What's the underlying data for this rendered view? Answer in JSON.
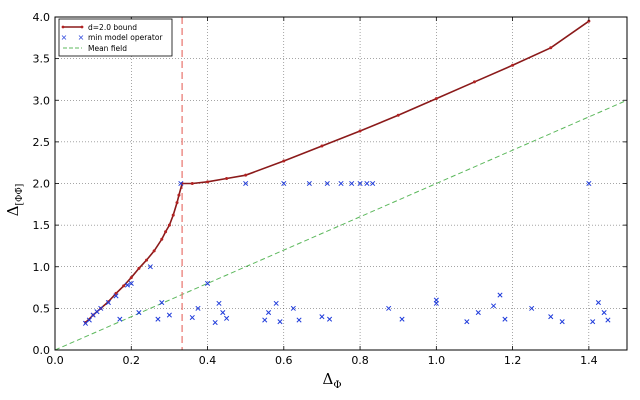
{
  "chart_data": {
    "type": "line",
    "xlim": [
      0.0,
      1.5
    ],
    "ylim": [
      0.0,
      4.0
    ],
    "xticks": [
      "0.0",
      "0.2",
      "0.4",
      "0.6",
      "0.8",
      "1.0",
      "1.2",
      "1.4"
    ],
    "xtick_values": [
      0.0,
      0.2,
      0.4,
      0.6,
      0.8,
      1.0,
      1.2,
      1.4
    ],
    "yticks": [
      "0.0",
      "0.5",
      "1.0",
      "1.5",
      "2.0",
      "2.5",
      "3.0",
      "3.5",
      "4.0"
    ],
    "ytick_values": [
      0.0,
      0.5,
      1.0,
      1.5,
      2.0,
      2.5,
      3.0,
      3.5,
      4.0
    ],
    "xlabel": "Δ",
    "xlabel_sub": "Φ",
    "ylabel": "Δ",
    "ylabel_sub": "[ΦΦ̄]",
    "grid": true,
    "legend_position": "top-left",
    "colors": {
      "bound": "#8b1a1a",
      "bound_marker": "#b22222",
      "min_model": "#1f3bdb",
      "mean_field": "#5cb85c",
      "vline": "#e8736c"
    },
    "series": [
      {
        "name": "d=2.0 bound",
        "style": "line-dots",
        "x": [
          0.08,
          0.1,
          0.12,
          0.14,
          0.16,
          0.18,
          0.2,
          0.22,
          0.24,
          0.26,
          0.28,
          0.29,
          0.3,
          0.31,
          0.32,
          0.325,
          0.3333,
          0.36,
          0.4,
          0.45,
          0.5,
          0.6,
          0.7,
          0.8,
          0.9,
          1.0,
          1.1,
          1.2,
          1.3,
          1.4
        ],
        "y": [
          0.33,
          0.42,
          0.5,
          0.58,
          0.68,
          0.77,
          0.87,
          0.98,
          1.08,
          1.19,
          1.33,
          1.42,
          1.5,
          1.62,
          1.77,
          1.86,
          2.0,
          2.0,
          2.02,
          2.06,
          2.1,
          2.27,
          2.45,
          2.63,
          2.82,
          3.02,
          3.22,
          3.42,
          3.63,
          3.95
        ]
      },
      {
        "name": "min model operator",
        "style": "x-markers",
        "points": [
          [
            0.08,
            0.32
          ],
          [
            0.09,
            0.36
          ],
          [
            0.1,
            0.42
          ],
          [
            0.11,
            0.46
          ],
          [
            0.12,
            0.5
          ],
          [
            0.14,
            0.57
          ],
          [
            0.16,
            0.65
          ],
          [
            0.17,
            0.37
          ],
          [
            0.19,
            0.78
          ],
          [
            0.2,
            0.8
          ],
          [
            0.22,
            0.45
          ],
          [
            0.25,
            1.0
          ],
          [
            0.27,
            0.37
          ],
          [
            0.28,
            0.57
          ],
          [
            0.3,
            0.42
          ],
          [
            0.33,
            2.0
          ],
          [
            0.36,
            0.39
          ],
          [
            0.375,
            0.5
          ],
          [
            0.4,
            0.8
          ],
          [
            0.42,
            0.33
          ],
          [
            0.43,
            0.56
          ],
          [
            0.44,
            0.45
          ],
          [
            0.45,
            0.38
          ],
          [
            0.5,
            2.0
          ],
          [
            0.55,
            0.36
          ],
          [
            0.56,
            0.45
          ],
          [
            0.58,
            0.56
          ],
          [
            0.59,
            0.34
          ],
          [
            0.6,
            2.0
          ],
          [
            0.625,
            0.5
          ],
          [
            0.64,
            0.36
          ],
          [
            0.667,
            2.0
          ],
          [
            0.7,
            0.4
          ],
          [
            0.714,
            2.0
          ],
          [
            0.72,
            0.37
          ],
          [
            0.75,
            2.0
          ],
          [
            0.778,
            2.0
          ],
          [
            0.8,
            2.0
          ],
          [
            0.818,
            2.0
          ],
          [
            0.833,
            2.0
          ],
          [
            0.875,
            0.5
          ],
          [
            0.91,
            0.37
          ],
          [
            1.0,
            0.56
          ],
          [
            1.0,
            0.6
          ],
          [
            1.08,
            0.34
          ],
          [
            1.11,
            0.45
          ],
          [
            1.15,
            0.53
          ],
          [
            1.167,
            0.66
          ],
          [
            1.18,
            0.37
          ],
          [
            1.25,
            0.5
          ],
          [
            1.3,
            0.4
          ],
          [
            1.33,
            0.34
          ],
          [
            1.4,
            2.0
          ],
          [
            1.41,
            0.34
          ],
          [
            1.425,
            0.57
          ],
          [
            1.44,
            0.45
          ],
          [
            1.45,
            0.36
          ]
        ]
      },
      {
        "name": "Mean field",
        "style": "dashed",
        "x": [
          0.0,
          1.5
        ],
        "y": [
          0.0,
          3.0
        ]
      }
    ],
    "annotations": [
      {
        "type": "vline",
        "x": 0.3333
      }
    ]
  }
}
